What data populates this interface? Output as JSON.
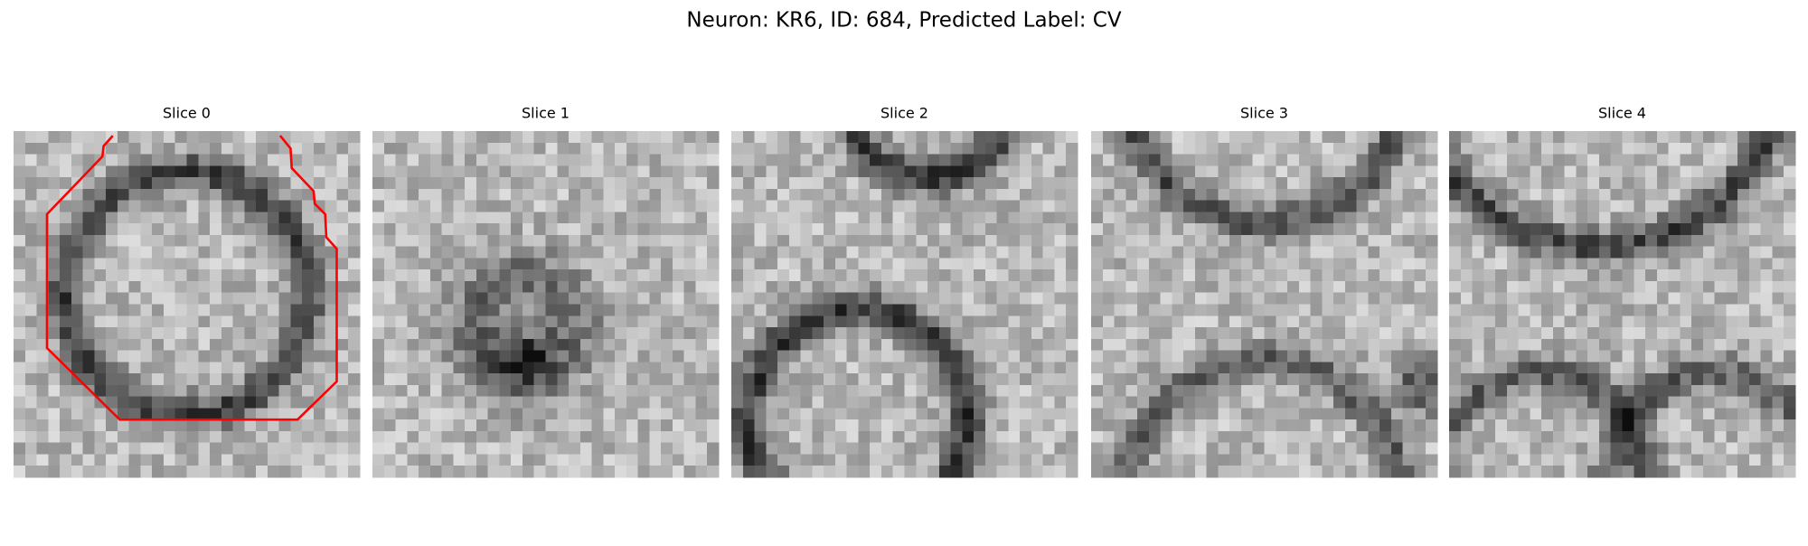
{
  "figure": {
    "title": "Neuron: KR6, ID: 684, Predicted Label: CV",
    "panels": [
      {
        "title": "Slice 0"
      },
      {
        "title": "Slice 1"
      },
      {
        "title": "Slice 2"
      },
      {
        "title": "Slice 3"
      },
      {
        "title": "Slice 4"
      }
    ]
  }
}
